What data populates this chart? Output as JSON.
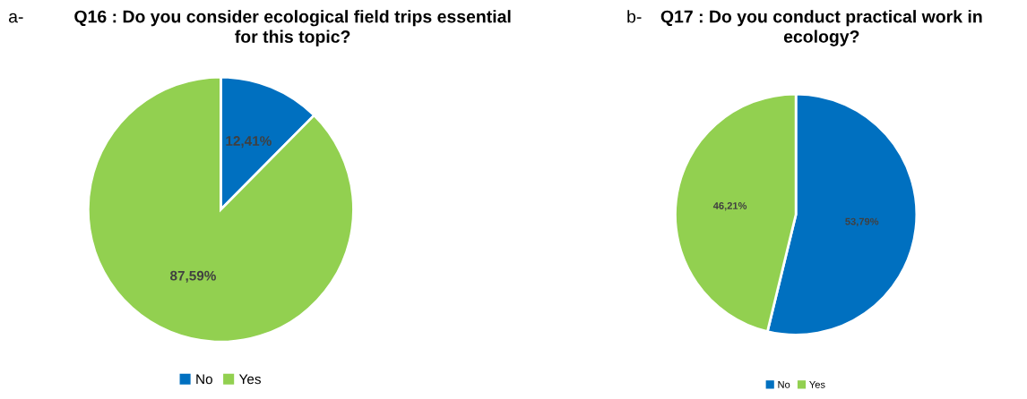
{
  "chart_data": [
    {
      "type": "pie",
      "title": "Q16 : Do you consider ecological field trips essential\nfor this topic?",
      "annotations": [
        "a-"
      ],
      "categories": [
        "No",
        "Yes"
      ],
      "values": [
        12.41,
        87.59
      ],
      "colors": [
        "#0070c0",
        "#92d050"
      ],
      "value_labels": [
        "12,41%",
        "87,59%"
      ],
      "legend": "bottom"
    },
    {
      "type": "pie",
      "title": "Q17 : Do you conduct practical work in\necology?",
      "annotations": [
        "b-"
      ],
      "categories": [
        "No",
        "Yes"
      ],
      "values": [
        53.79,
        46.21
      ],
      "colors": [
        "#0070c0",
        "#92d050"
      ],
      "value_labels": [
        "53,79%",
        "46,21%"
      ],
      "legend": "bottom"
    }
  ]
}
